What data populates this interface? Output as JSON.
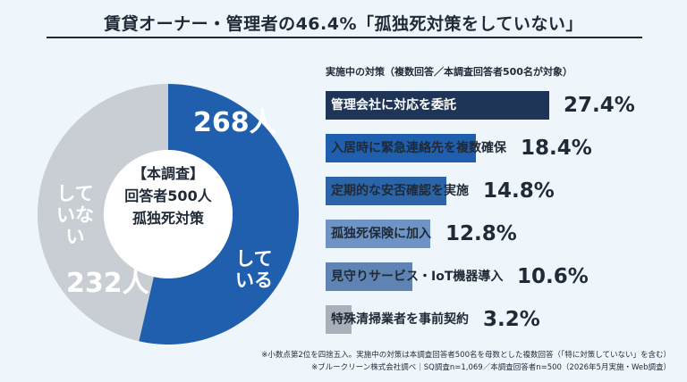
{
  "header": {
    "title": "賃貸オーナー・管理者の46.4%「孤独死対策をしていない」"
  },
  "chart_data": [
    {
      "type": "pie",
      "center_label": [
        "【本調査】",
        "回答者500人",
        "孤独死対策"
      ],
      "slices": [
        {
          "label": "している",
          "value": 268,
          "display": "268人",
          "color": "#1f5fad"
        },
        {
          "label": "していない",
          "value": 232,
          "display": "232人",
          "color": "#c9cdd4"
        }
      ]
    },
    {
      "type": "bar",
      "title": "実施中の対策（複数回答／本調査回答者500名が対象）",
      "categories": [
        "管理会社に対応を委託",
        "入居時に緊急連絡先を複数確保",
        "定期的な安否確認を実施",
        "孤独死保険に加入",
        "見守りサービス・IoT機器導入",
        "特殊清掃業者を事前契約"
      ],
      "values": [
        27.4,
        18.4,
        14.8,
        12.8,
        10.6,
        3.2
      ],
      "value_labels": [
        "27.4%",
        "18.4%",
        "14.8%",
        "12.8%",
        "10.6%",
        "3.2%"
      ],
      "colors": [
        "#1e3557",
        "#1f5fad",
        "#2b64a8",
        "#6d94c4",
        "#5f83b3",
        "#a9b0ba"
      ]
    }
  ],
  "footnotes": [
    "※小数点第2位を四捨五入。実施中の対策は本調査回答者500名を母数とした複数回答（「特に対策していない」を含む）",
    "※ブルークリーン株式会社調べ｜SQ調査n=1,069／本調査回答者n=500（2026年5月実施・Web調査）"
  ]
}
